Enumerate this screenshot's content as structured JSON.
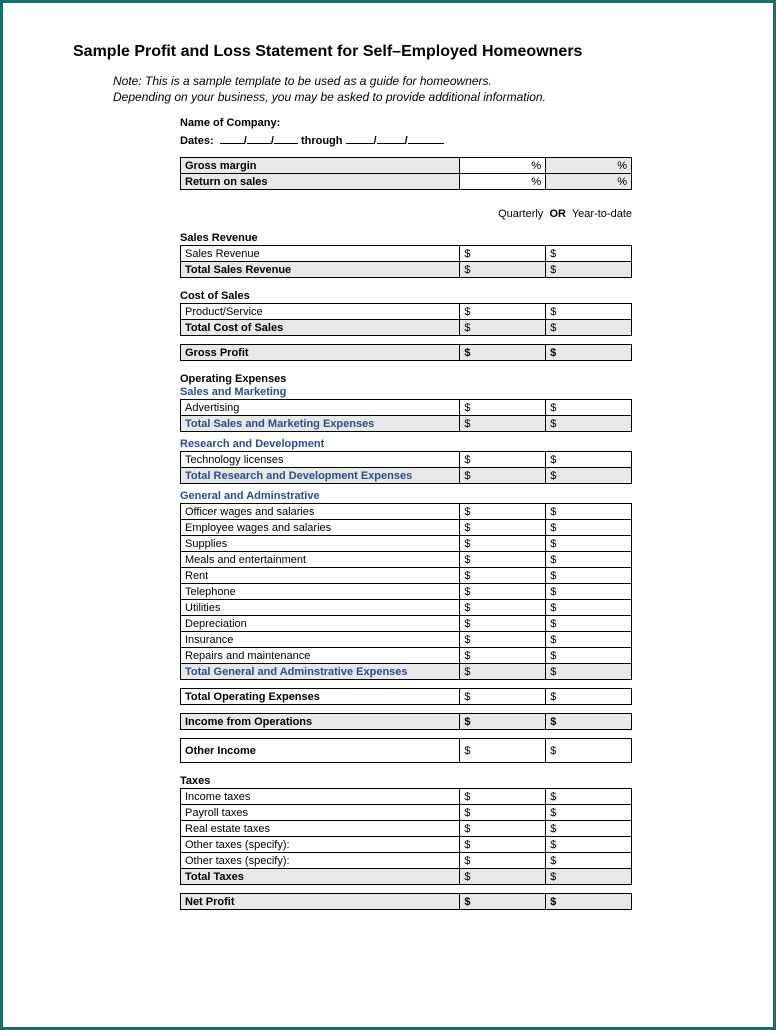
{
  "title": "Sample Profit and Loss Statement for Self–Employed Homeowners",
  "note_line1": "Note: This is a sample template to be used as a guide for homeowners.",
  "note_line2": "Depending on your business, you may be asked to provide additional information.",
  "name_label": "Name of Company:",
  "dates_prefix": "Dates:",
  "dates_through": "through",
  "pct_symbol": "%",
  "dollar_symbol": "$",
  "period_q": "Quarterly",
  "period_or": "OR",
  "period_y": "Year-to-date",
  "margins": {
    "rows": [
      {
        "label": "Gross margin"
      },
      {
        "label": "Return on sales"
      }
    ]
  },
  "sales_revenue": {
    "header": "Sales Revenue",
    "rows": [
      {
        "label": "Sales Revenue",
        "bold": false,
        "grey": false
      }
    ],
    "total": "Total Sales Revenue"
  },
  "cost_of_sales": {
    "header": "Cost of Sales",
    "rows": [
      {
        "label": "Product/Service",
        "bold": false,
        "grey": false
      }
    ],
    "total": "Total Cost of Sales"
  },
  "gross_profit": "Gross Profit",
  "operating_expenses_header": "Operating Expenses",
  "sales_marketing": {
    "header": "Sales and Marketing",
    "rows": [
      {
        "label": "Advertising"
      }
    ],
    "total": "Total Sales and Marketing Expenses"
  },
  "r_and_d": {
    "header": "Research and Development",
    "rows": [
      {
        "label": "Technology licenses"
      }
    ],
    "total": "Total Research and Development Expenses"
  },
  "g_and_a": {
    "header": "General and Adminstrative",
    "rows": [
      {
        "label": "Officer wages and salaries"
      },
      {
        "label": "Employee wages and salaries"
      },
      {
        "label": "Supplies"
      },
      {
        "label": "Meals and entertainment"
      },
      {
        "label": "Rent"
      },
      {
        "label": "Telephone"
      },
      {
        "label": "Utilities"
      },
      {
        "label": "Depreciation"
      },
      {
        "label": "Insurance"
      },
      {
        "label": "Repairs and maintenance"
      }
    ],
    "total": "Total General and Adminstrative Expenses"
  },
  "total_op_exp": "Total Operating Expenses",
  "income_ops": "Income from Operations",
  "other_income": "Other Income",
  "taxes": {
    "header": "Taxes",
    "rows": [
      {
        "label": "Income taxes"
      },
      {
        "label": "Payroll taxes"
      },
      {
        "label": "Real estate taxes"
      },
      {
        "label": "Other taxes (specify):"
      },
      {
        "label": "Other taxes (specify):"
      }
    ],
    "total": "Total Taxes"
  },
  "net_profit": "Net Profit",
  "colors": {
    "border": "#1a6d6d",
    "grey": "#e8e8e8",
    "blue": "#2a4d8f"
  }
}
